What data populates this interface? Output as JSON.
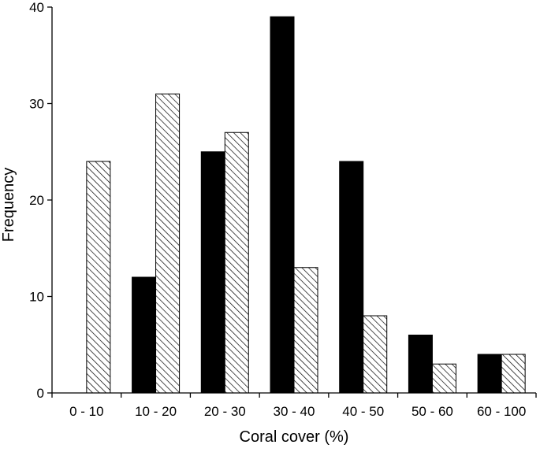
{
  "chart_data": {
    "type": "bar",
    "title": "",
    "xlabel": "Coral cover (%)",
    "ylabel": "Frequency",
    "categories": [
      "0 - 10",
      "10 - 20",
      "20 - 30",
      "30 - 40",
      "40 - 50",
      "50 - 60",
      "60 - 100"
    ],
    "ylim": [
      0,
      40
    ],
    "yticks": [
      0,
      10,
      20,
      30,
      40
    ],
    "grid": false,
    "legend": "none",
    "series": [
      {
        "fill": "solid",
        "color": "#000000",
        "values": [
          0,
          12,
          25,
          39,
          24,
          6,
          4
        ]
      },
      {
        "fill": "diagonal-hatch",
        "color": "#000000",
        "values": [
          24,
          31,
          27,
          13,
          8,
          3,
          4
        ]
      }
    ]
  }
}
